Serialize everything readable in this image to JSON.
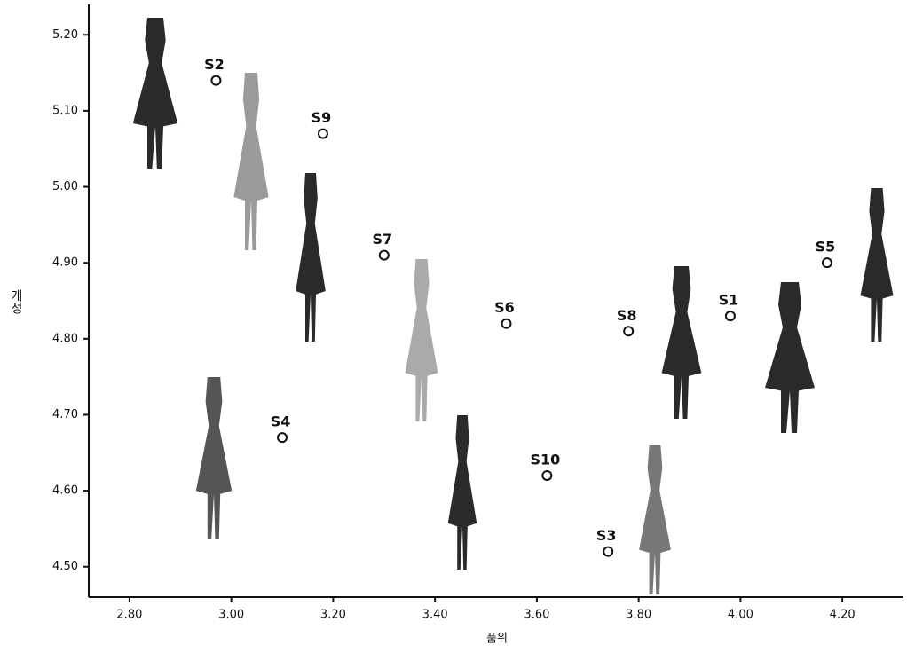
{
  "chart_data": {
    "type": "scatter",
    "x_label": "품위",
    "y_label": "개성",
    "point_labels": [
      "S1",
      "S2",
      "S3",
      "S4",
      "S5",
      "S6",
      "S7",
      "S8",
      "S9",
      "S10"
    ],
    "x": [
      3.98,
      2.97,
      3.74,
      3.1,
      4.17,
      3.54,
      3.3,
      3.78,
      3.18,
      3.62
    ],
    "values": [
      4.83,
      5.14,
      4.52,
      4.67,
      4.9,
      4.82,
      4.91,
      4.81,
      5.07,
      4.62
    ],
    "xlim": [
      2.72,
      4.32
    ],
    "ylim": [
      4.46,
      5.24
    ],
    "xticks": [
      {
        "value": 2.8,
        "label": "2.80"
      },
      {
        "value": 3.0,
        "label": "3.00"
      },
      {
        "value": 3.2,
        "label": "3.20"
      },
      {
        "value": 3.4,
        "label": "3.40"
      },
      {
        "value": 3.6,
        "label": "3.60"
      },
      {
        "value": 3.8,
        "label": "3.80"
      },
      {
        "value": 4.0,
        "label": "4.00"
      },
      {
        "value": 4.2,
        "label": "4.20"
      }
    ],
    "yticks": [
      {
        "value": 4.5,
        "label": "4.50"
      },
      {
        "value": 4.6,
        "label": "4.60"
      },
      {
        "value": 4.7,
        "label": "4.70"
      },
      {
        "value": 4.8,
        "label": "4.80"
      },
      {
        "value": 4.9,
        "label": "4.90"
      },
      {
        "value": 5.0,
        "label": "5.00"
      },
      {
        "value": 5.1,
        "label": "5.10"
      },
      {
        "value": 5.2,
        "label": "5.20"
      }
    ],
    "color": "#111111"
  }
}
